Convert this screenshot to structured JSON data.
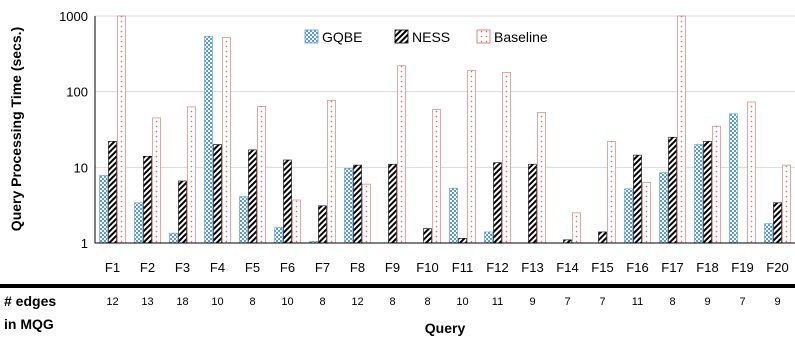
{
  "chart_data": {
    "type": "bar",
    "ylabel": "Query Processing Time (secs.)",
    "xlabel": "Query",
    "yscale": "log",
    "ylim": [
      1,
      1000
    ],
    "yticks": [
      "1",
      "10",
      "100",
      "1000"
    ],
    "grid": true,
    "legend_position": "top",
    "categories": [
      "F1",
      "F2",
      "F3",
      "F4",
      "F5",
      "F6",
      "F7",
      "F8",
      "F9",
      "F10",
      "F11",
      "F12",
      "F13",
      "F14",
      "F15",
      "F16",
      "F17",
      "F18",
      "F19",
      "F20"
    ],
    "series": [
      {
        "name": "GQBE",
        "color": "#5b9bd5",
        "pattern": "checker",
        "values": [
          7.8,
          3.4,
          1.35,
          540,
          4.1,
          1.6,
          1.05,
          9.7,
          null,
          null,
          5.3,
          1.4,
          null,
          null,
          null,
          5.2,
          8.5,
          20,
          51,
          1.8
        ]
      },
      {
        "name": "NESS",
        "color": "#000000",
        "pattern": "diagonal",
        "values": [
          22,
          14,
          6.6,
          20,
          17,
          12.5,
          3.1,
          10.7,
          11,
          1.55,
          1.15,
          11.5,
          11,
          1.1,
          1.4,
          14.5,
          25,
          22,
          null,
          3.4
        ]
      },
      {
        "name": "Baseline",
        "color": "#e8a0a0",
        "pattern": "dots",
        "values": [
          1000,
          45,
          63,
          520,
          64,
          3.7,
          77,
          6,
          220,
          58,
          190,
          180,
          53,
          2.5,
          22,
          6.3,
          1000,
          35,
          73,
          10.7
        ]
      }
    ],
    "row_label": [
      "# edges",
      "in MQG"
    ],
    "edges": [
      "12",
      "13",
      "18",
      "10",
      "8",
      "10",
      "8",
      "12",
      "8",
      "8",
      "10",
      "11",
      "9",
      "7",
      "7",
      "11",
      "8",
      "9",
      "7",
      "9"
    ]
  }
}
